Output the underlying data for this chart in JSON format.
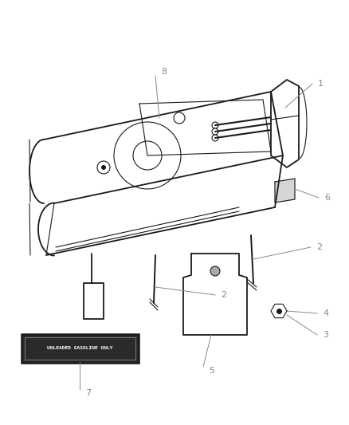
{
  "bg_color": "#ffffff",
  "line_color": "#1a1a1a",
  "label_color": "#888888",
  "figsize": [
    4.38,
    5.33
  ],
  "dpi": 100,
  "lw_main": 1.3,
  "lw_thin": 0.8,
  "lw_label": 0.7,
  "label_fs": 8,
  "badge_text": "UNLEADED GASOLINE ONLY"
}
